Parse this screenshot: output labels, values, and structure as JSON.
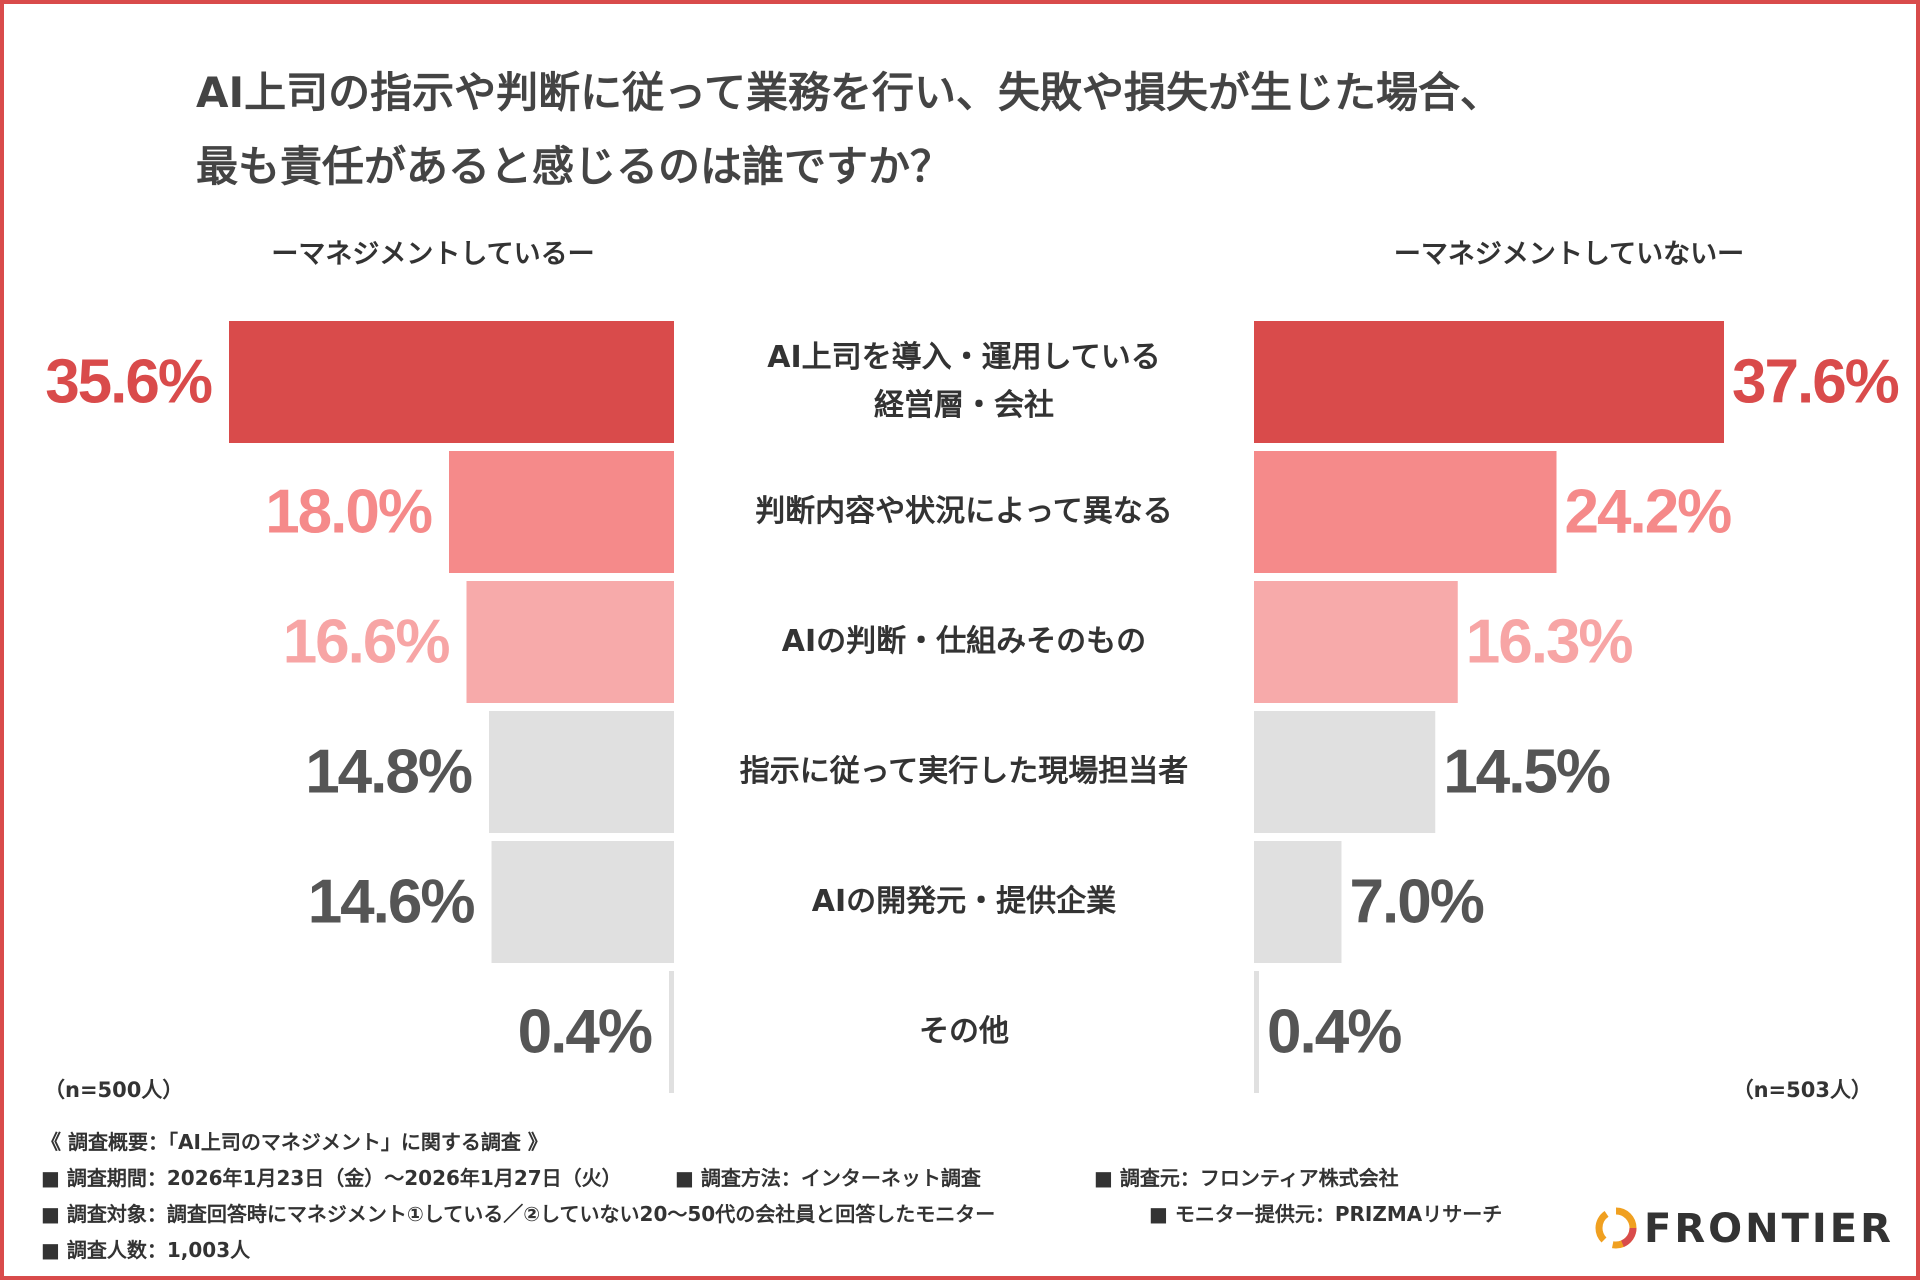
{
  "chart_data": {
    "type": "butterfly",
    "title": "AI上司の指示や判断に従って業務を行い、失敗や損失が生じた場合、\n最も責任があると感じるのは誰ですか？",
    "categories": [
      "AI上司を導入・運用している\n経営層・会社",
      "判断内容や状況によって異なる",
      "AIの判断・仕組みそのもの",
      "指示に従って実行した現場担当者",
      "AIの開発元・提供企業",
      "その他"
    ],
    "colors": [
      "#d94b4b",
      "#f58a8a",
      "#f7aaaa",
      "#e0e0e0",
      "#e0e0e0",
      "#e0e0e0"
    ],
    "label_colors": [
      "#d94b4b",
      "#f58a8a",
      "#f7a5a5",
      "#555555",
      "#555555",
      "#555555"
    ],
    "series": [
      {
        "name": "ーマネジメントしているー",
        "n": "（n=500人）",
        "values": [
          35.6,
          18.0,
          16.6,
          14.8,
          14.6,
          0.4
        ],
        "value_labels": [
          "35.6%",
          "18.0%",
          "16.6%",
          "14.8%",
          "14.6%",
          "0.4%"
        ]
      },
      {
        "name": "ーマネジメントしていないー",
        "n": "（n=503人）",
        "values": [
          37.6,
          24.2,
          16.3,
          14.5,
          7.0,
          0.4
        ],
        "value_labels": [
          "37.6%",
          "24.2%",
          "16.3%",
          "14.5%",
          "7.0%",
          "0.4%"
        ]
      }
    ]
  },
  "footer": [
    [
      "《 調査概要：「AI上司のマネジメント」に関する調査 》"
    ],
    [
      "■ 調査期間：2026年1月23日（金）～2026年1月27日（火）",
      "■ 調査方法：インターネット調査",
      "■ 調査元：フロンティア株式会社"
    ],
    [
      "■ 調査対象：調査回答時にマネジメント①している／②していない20～50代の会社員と回答したモニター",
      "■ モニター提供元：PRIZMAリサーチ"
    ],
    [
      "■ 調査人数：1,003人"
    ]
  ],
  "logo": "FRONTIER"
}
